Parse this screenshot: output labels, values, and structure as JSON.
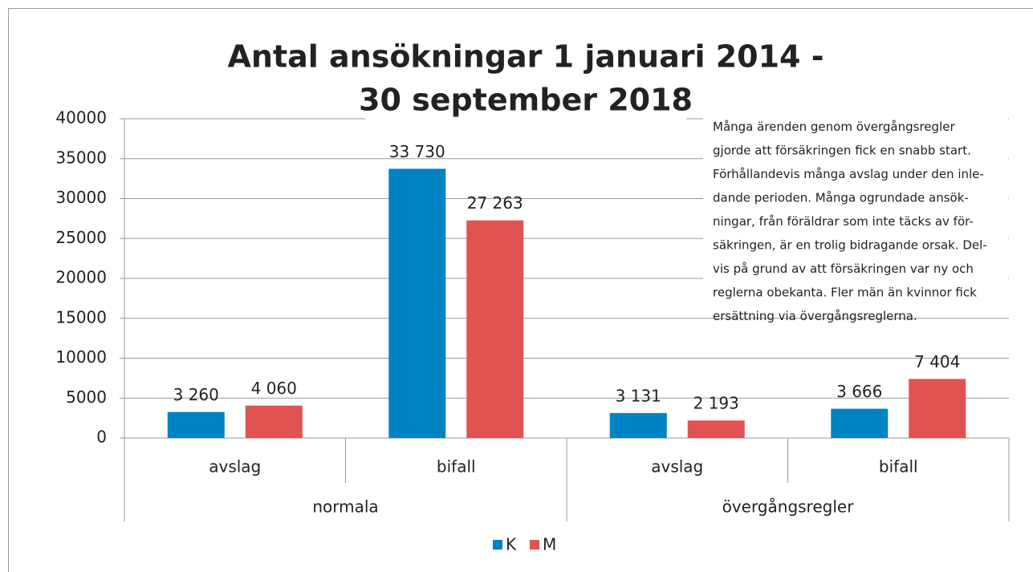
{
  "chart_data": {
    "type": "bar",
    "title": [
      "Antal ansökningar 1 januari 2014 -",
      "30 september 2018"
    ],
    "annotation": [
      "Många ärenden genom övergångsregler",
      "gjorde att försäkringen fick en snabb start.",
      "Förhållandevis många avslag under den inle-",
      "dande perioden. Många ogrundade ansök-",
      "ningar, från föräldrar som inte täcks av för-",
      "säkringen, är en trolig bidragande orsak. Del-",
      "vis på grund av att försäkringen var ny och",
      "reglerna obekanta. Fler män än kvinnor fick",
      "ersättning via övergångsreglerna."
    ],
    "categories": [
      "avslag",
      "bifall",
      "avslag",
      "bifall"
    ],
    "category_groups": [
      "normala",
      "övergångsregler"
    ],
    "series": [
      {
        "name": "K",
        "color": "#0083c4",
        "values": [
          3260,
          33730,
          3131,
          3666
        ],
        "value_labels": [
          "3 260",
          "33 730",
          "3 131",
          "3 666"
        ]
      },
      {
        "name": "M",
        "color": "#e05352",
        "values": [
          4060,
          27263,
          2193,
          7404
        ],
        "value_labels": [
          "4 060",
          "27 263",
          "2 193",
          "7 404"
        ]
      }
    ],
    "ylim": [
      0,
      40000
    ],
    "yticks": [
      0,
      5000,
      10000,
      15000,
      20000,
      25000,
      30000,
      35000,
      40000
    ],
    "grid": true
  }
}
